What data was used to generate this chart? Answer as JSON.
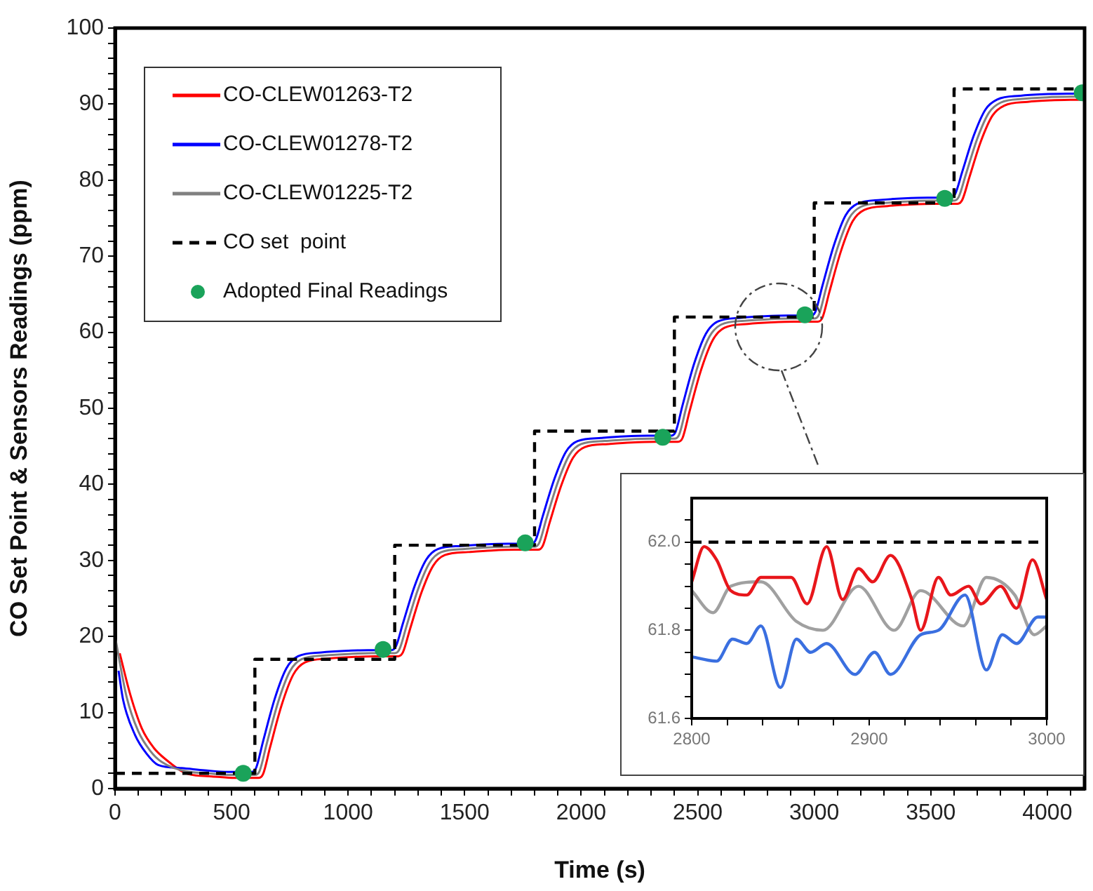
{
  "chart_data": [
    {
      "type": "line",
      "xlabel": "Time (s)",
      "ylabel": "CO Set Point & Sensors Readings (ppm)",
      "xlim": [
        0,
        4160
      ],
      "ylim": [
        0,
        100
      ],
      "xticks": [
        0,
        {
          "value": 100,
          "label": null
        },
        {
          "value": 200,
          "label": null
        },
        {
          "value": 300,
          "label": null
        },
        {
          "value": 400,
          "label": null
        },
        500,
        {
          "value": 600,
          "label": null
        },
        {
          "value": 700,
          "label": null
        },
        {
          "value": 800,
          "label": null
        },
        {
          "value": 900,
          "label": null
        },
        1000,
        {
          "value": 1100,
          "label": null
        },
        {
          "value": 1200,
          "label": null
        },
        {
          "value": 1300,
          "label": null
        },
        {
          "value": 1400,
          "label": null
        },
        1500,
        {
          "value": 1600,
          "label": null
        },
        {
          "value": 1700,
          "label": null
        },
        {
          "value": 1800,
          "label": null
        },
        {
          "value": 1900,
          "label": null
        },
        2000,
        {
          "value": 2100,
          "label": null
        },
        {
          "value": 2200,
          "label": null
        },
        {
          "value": 2300,
          "label": null
        },
        {
          "value": 2400,
          "label": null
        },
        2500,
        {
          "value": 2600,
          "label": null
        },
        {
          "value": 2700,
          "label": null
        },
        {
          "value": 2800,
          "label": null
        },
        {
          "value": 2900,
          "label": null
        },
        3000,
        {
          "value": 3100,
          "label": null
        },
        {
          "value": 3200,
          "label": null
        },
        {
          "value": 3300,
          "label": null
        },
        {
          "value": 3400,
          "label": null
        },
        3500,
        {
          "value": 3600,
          "label": null
        },
        {
          "value": 3700,
          "label": null
        },
        {
          "value": 3800,
          "label": null
        },
        {
          "value": 3900,
          "label": null
        },
        4000,
        {
          "value": 4100,
          "label": null
        }
      ],
      "yticks": [
        0,
        {
          "value": 2,
          "label": null
        },
        {
          "value": 4,
          "label": null
        },
        {
          "value": 6,
          "label": null
        },
        {
          "value": 8,
          "label": null
        },
        10,
        {
          "value": 12,
          "label": null
        },
        {
          "value": 14,
          "label": null
        },
        {
          "value": 16,
          "label": null
        },
        {
          "value": 18,
          "label": null
        },
        20,
        {
          "value": 22,
          "label": null
        },
        {
          "value": 24,
          "label": null
        },
        {
          "value": 26,
          "label": null
        },
        {
          "value": 28,
          "label": null
        },
        30,
        {
          "value": 32,
          "label": null
        },
        {
          "value": 34,
          "label": null
        },
        {
          "value": 36,
          "label": null
        },
        {
          "value": 38,
          "label": null
        },
        40,
        {
          "value": 42,
          "label": null
        },
        {
          "value": 44,
          "label": null
        },
        {
          "value": 46,
          "label": null
        },
        {
          "value": 48,
          "label": null
        },
        50,
        {
          "value": 52,
          "label": null
        },
        {
          "value": 54,
          "label": null
        },
        {
          "value": 56,
          "label": null
        },
        {
          "value": 58,
          "label": null
        },
        60,
        {
          "value": 62,
          "label": null
        },
        {
          "value": 64,
          "label": null
        },
        {
          "value": 66,
          "label": null
        },
        {
          "value": 68,
          "label": null
        },
        70,
        {
          "value": 72,
          "label": null
        },
        {
          "value": 74,
          "label": null
        },
        {
          "value": 76,
          "label": null
        },
        {
          "value": 78,
          "label": null
        },
        80,
        {
          "value": 82,
          "label": null
        },
        {
          "value": 84,
          "label": null
        },
        {
          "value": 86,
          "label": null
        },
        {
          "value": 88,
          "label": null
        },
        90,
        {
          "value": 92,
          "label": null
        },
        {
          "value": 94,
          "label": null
        },
        {
          "value": 96,
          "label": null
        },
        {
          "value": 98,
          "label": null
        },
        100
      ],
      "grid": false,
      "legend": "top left",
      "marker": "none",
      "line_style": "solid",
      "series": [
        {
          "name": "CO-CLEW01263-T2",
          "color": "#ff0000",
          "type": "line",
          "x": [
            20,
            65,
            115,
            165,
            215,
            315,
            415,
            515,
            615,
            635,
            665,
            715,
            765,
            815,
            915,
            1015,
            1115,
            1215,
            1235,
            1265,
            1315,
            1365,
            1415,
            1515,
            1615,
            1715,
            1815,
            1835,
            1865,
            1915,
            1965,
            2015,
            2115,
            2215,
            2315,
            2415,
            2435,
            2465,
            2515,
            2565,
            2615,
            2715,
            2815,
            2915,
            3015,
            3035,
            3065,
            3115,
            3165,
            3215,
            3315,
            3415,
            3515,
            3615,
            3635,
            3665,
            3715,
            3765,
            3815,
            3915,
            4015,
            4150
          ],
          "values": [
            17.8,
            12.4,
            7.9,
            5.4,
            3.9,
            1.9,
            1.6,
            1.4,
            1.4,
            1.9,
            5.4,
            11,
            15,
            16.6,
            17.1,
            17.3,
            17.4,
            17.4,
            17.9,
            20.9,
            25.8,
            29.3,
            30.7,
            31.1,
            31.3,
            31.4,
            31.4,
            31.9,
            35,
            39.9,
            43.5,
            44.9,
            45.3,
            45.5,
            45.6,
            45.6,
            46.1,
            49.6,
            55.1,
            59,
            60.6,
            61.1,
            61.3,
            61.4,
            61.4,
            61.9,
            65.3,
            70.7,
            74.6,
            76.1,
            76.6,
            76.8,
            76.9,
            76.9,
            77.4,
            80.3,
            85.1,
            88.5,
            89.8,
            90.3,
            90.5,
            90.6
          ]
        },
        {
          "name": "CO-CLEW01278-T2",
          "color": "#0000ff",
          "type": "line",
          "x": [
            15,
            35,
            85,
            135,
            185,
            285,
            385,
            485,
            585,
            605,
            635,
            685,
            735,
            785,
            885,
            985,
            1085,
            1185,
            1205,
            1235,
            1285,
            1335,
            1385,
            1485,
            1585,
            1685,
            1785,
            1805,
            1835,
            1885,
            1935,
            1985,
            2085,
            2185,
            2285,
            2385,
            2405,
            2435,
            2485,
            2535,
            2585,
            2685,
            2785,
            2885,
            2985,
            3005,
            3035,
            3085,
            3135,
            3185,
            3285,
            3385,
            3485,
            3585,
            3605,
            3635,
            3685,
            3735,
            3785,
            3885,
            3985,
            4135
          ],
          "values": [
            15.5,
            11.6,
            7.1,
            4.6,
            3.1,
            2.7,
            2.4,
            2.2,
            2.2,
            2.7,
            6.2,
            11.8,
            15.8,
            17.4,
            17.9,
            18.1,
            18.2,
            18.2,
            18.7,
            21.7,
            26.6,
            30.1,
            31.5,
            31.9,
            32.1,
            32.2,
            32.2,
            32.7,
            35.8,
            40.7,
            44.3,
            45.7,
            46.1,
            46.3,
            46.4,
            46.4,
            46.9,
            50.4,
            55.9,
            59.8,
            61.4,
            61.9,
            62.1,
            62.2,
            62.2,
            62.7,
            66.1,
            71.5,
            75.4,
            76.9,
            77.4,
            77.6,
            77.7,
            77.7,
            78.2,
            81.1,
            85.9,
            89.3,
            90.6,
            91.1,
            91.3,
            91.4
          ]
        },
        {
          "name": "CO-CLEW01225-T2",
          "color": "#808080",
          "type": "line",
          "x": [
            0,
            50,
            100,
            150,
            200,
            300,
            400,
            500,
            600,
            620,
            650,
            700,
            750,
            800,
            900,
            1000,
            1100,
            1200,
            1220,
            1250,
            1300,
            1350,
            1400,
            1500,
            1600,
            1700,
            1800,
            1820,
            1850,
            1900,
            1950,
            2000,
            2100,
            2200,
            2300,
            2400,
            2420,
            2450,
            2500,
            2550,
            2600,
            2700,
            2800,
            2900,
            3000,
            3020,
            3050,
            3100,
            3150,
            3200,
            3300,
            3400,
            3500,
            3600,
            3620,
            3650,
            3700,
            3750,
            3800,
            3900,
            4000,
            4150
          ],
          "values": [
            20,
            12,
            7.5,
            5,
            3.5,
            2.3,
            2,
            1.8,
            1.8,
            2.3,
            5.8,
            11.4,
            15.4,
            17,
            17.5,
            17.7,
            17.8,
            17.8,
            18.3,
            21.3,
            26.2,
            29.7,
            31.1,
            31.5,
            31.7,
            31.8,
            31.8,
            32.3,
            35.4,
            40.3,
            43.9,
            45.3,
            45.7,
            45.9,
            46,
            46,
            46.5,
            50,
            55.5,
            59.4,
            61,
            61.5,
            61.7,
            61.8,
            61.8,
            62.3,
            65.7,
            71.1,
            75,
            76.5,
            77,
            77.2,
            77.3,
            77.3,
            77.8,
            80.7,
            85.5,
            88.9,
            90.2,
            90.7,
            90.9,
            91
          ]
        },
        {
          "name": "CO set  point",
          "color": "#000000",
          "type": "step",
          "line_style": "dashed",
          "x": [
            0,
            600,
            1200,
            1800,
            2400,
            3000,
            3600,
            4160
          ],
          "values": [
            2,
            17,
            32,
            47,
            62,
            77,
            92,
            92
          ]
        },
        {
          "name": "Adopted Final Readings",
          "color": "#1aa35a",
          "type": "scatter",
          "marker": "circle",
          "x": [
            550,
            1150,
            1760,
            2350,
            2960,
            3560,
            4150
          ],
          "values": [
            2,
            18.3,
            32.3,
            46.2,
            62.3,
            77.6,
            91.5
          ]
        }
      ]
    },
    {
      "type": "line",
      "xlim": [
        2800,
        3000
      ],
      "ylim": [
        61.6,
        62.1
      ],
      "xticks": [
        2800,
        {
          "value": 2820,
          "label": null
        },
        {
          "value": 2840,
          "label": null
        },
        {
          "value": 2860,
          "label": null
        },
        {
          "value": 2880,
          "label": null
        },
        2900,
        {
          "value": 2920,
          "label": null
        },
        {
          "value": 2940,
          "label": null
        },
        {
          "value": 2960,
          "label": null
        },
        {
          "value": 2980,
          "label": null
        },
        3000
      ],
      "yticks": [
        {
          "value": 61.6,
          "label": "61.6"
        },
        {
          "value": 61.65,
          "label": null
        },
        {
          "value": 61.7,
          "label": null
        },
        {
          "value": 61.75,
          "label": null
        },
        {
          "value": 61.8,
          "label": "61.8"
        },
        {
          "value": 61.85,
          "label": null
        },
        {
          "value": 61.9,
          "label": null
        },
        {
          "value": 61.95,
          "label": null
        },
        {
          "value": 62,
          "label": "62.0"
        },
        {
          "value": 62.05,
          "label": null
        }
      ],
      "grid": false,
      "legend": false,
      "marker": "none",
      "line_style": "solid",
      "series": [
        {
          "color": "#a0a0a0",
          "type": "line",
          "x": [
            2800,
            2812,
            2822,
            2839,
            2859,
            2874,
            2894,
            2914,
            2929,
            2953,
            2966,
            2982,
            2993,
            3000
          ],
          "values": [
            61.89,
            61.84,
            61.9,
            61.91,
            61.82,
            61.8,
            61.9,
            61.8,
            61.89,
            61.81,
            61.92,
            61.88,
            61.79,
            61.81
          ]
        },
        {
          "color": "#3a6fe0",
          "type": "line",
          "x": [
            2800,
            2814,
            2823,
            2831,
            2839,
            2850,
            2859,
            2867,
            2876,
            2892,
            2903,
            2912,
            2929,
            2939,
            2954,
            2966,
            2975,
            2983,
            2995,
            3000
          ],
          "values": [
            61.74,
            61.73,
            61.78,
            61.77,
            61.81,
            61.67,
            61.78,
            61.75,
            61.77,
            61.7,
            61.75,
            61.7,
            61.79,
            61.8,
            61.88,
            61.71,
            61.79,
            61.77,
            61.83,
            61.83
          ]
        },
        {
          "color": "#e8161b",
          "type": "line",
          "x": [
            2800,
            2807,
            2814,
            2822,
            2831,
            2839,
            2856,
            2865,
            2876,
            2885,
            2894,
            2902,
            2912,
            2924,
            2929,
            2939,
            2946,
            2956,
            2963,
            2974,
            2983,
            2992,
            3000
          ],
          "values": [
            61.91,
            61.99,
            61.96,
            61.89,
            61.88,
            61.92,
            61.92,
            61.86,
            61.99,
            61.87,
            61.94,
            61.91,
            61.97,
            61.87,
            61.8,
            61.92,
            61.88,
            61.9,
            61.86,
            61.9,
            61.85,
            61.96,
            61.87
          ]
        },
        {
          "color": "#000000",
          "type": "line",
          "line_style": "dashed",
          "x": [
            2800,
            3000
          ],
          "values": [
            62,
            62
          ]
        }
      ]
    }
  ]
}
